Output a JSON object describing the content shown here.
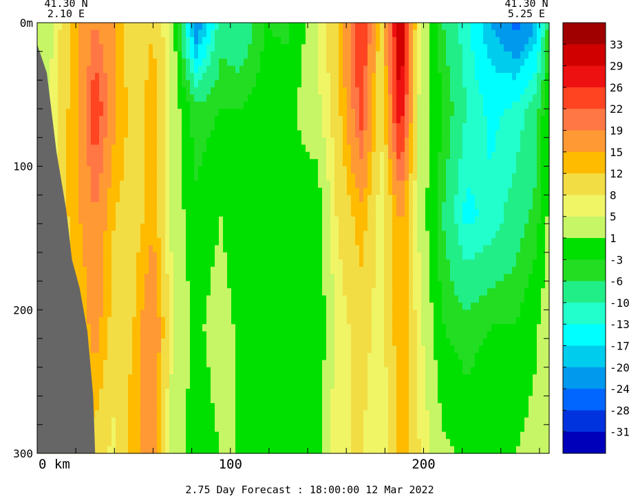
{
  "chart_data": {
    "type": "heatmap",
    "title": "",
    "footer": "2.75 Day Forecast : 18:00:00  12 Mar 2022",
    "left_coord": {
      "lat": "41.30 N",
      "lon": "2.10 E"
    },
    "right_coord": {
      "lat": "41.30 N",
      "lon": "5.25 E"
    },
    "xlabel": "",
    "ylabel": "",
    "x_unit": "km",
    "xlim": [
      0,
      265
    ],
    "ylim": [
      0,
      300
    ],
    "x_ticks": [
      {
        "value": 0,
        "label": "0 km"
      },
      {
        "value": 100,
        "label": "100"
      },
      {
        "value": 200,
        "label": "200"
      }
    ],
    "y_ticks": [
      {
        "value": 0,
        "label": "0m"
      },
      {
        "value": 100,
        "label": "100"
      },
      {
        "value": 200,
        "label": "200"
      },
      {
        "value": 300,
        "label": "300"
      }
    ],
    "colorbar": {
      "labels": [
        "33",
        "29",
        "26",
        "22",
        "19",
        "15",
        "12",
        "8",
        "5",
        "1",
        "-3",
        "-6",
        "-10",
        "-13",
        "-17",
        "-20",
        "-24",
        "-28",
        "-31"
      ],
      "colors": [
        "#a00000",
        "#d00000",
        "#ee1111",
        "#ff4422",
        "#ff7744",
        "#ff9933",
        "#ffbb00",
        "#f2dd44",
        "#f0f566",
        "#c6f566",
        "#00e000",
        "#22dd22",
        "#22ee88",
        "#22ffcc",
        "#00ffff",
        "#00ccee",
        "#0099ee",
        "#0066ff",
        "#0033dd",
        "#0000bb"
      ]
    },
    "vertical_profile": [
      0,
      0.2,
      0.45,
      0.7,
      1.0
    ],
    "columns": [
      {
        "x": 4,
        "v": [
          2,
          2,
          2,
          2,
          2
        ]
      },
      {
        "x": 12,
        "v": [
          8,
          10,
          10,
          10,
          10
        ]
      },
      {
        "x": 22,
        "v": [
          15,
          15,
          15,
          12,
          12
        ]
      },
      {
        "x": 30,
        "v": [
          19,
          25,
          19,
          17,
          10
        ]
      },
      {
        "x": 40,
        "v": [
          15,
          16,
          12,
          10,
          7
        ]
      },
      {
        "x": 50,
        "v": [
          8,
          10,
          10,
          12,
          14
        ]
      },
      {
        "x": 60,
        "v": [
          12,
          14,
          14,
          20,
          18
        ]
      },
      {
        "x": 70,
        "v": [
          4,
          4,
          4,
          5,
          3
        ]
      },
      {
        "x": 82,
        "v": [
          -25,
          -5,
          -2,
          0,
          -1
        ]
      },
      {
        "x": 95,
        "v": [
          -8,
          -3,
          1,
          3,
          1
        ]
      },
      {
        "x": 105,
        "v": [
          -10,
          -3,
          -2,
          0,
          1
        ]
      },
      {
        "x": 118,
        "v": [
          -3,
          -1,
          -2,
          -2,
          -2
        ]
      },
      {
        "x": 130,
        "v": [
          -4,
          0,
          0,
          -3,
          -3
        ]
      },
      {
        "x": 145,
        "v": [
          5,
          4,
          -2,
          -2,
          -2
        ]
      },
      {
        "x": 155,
        "v": [
          12,
          10,
          8,
          6,
          8
        ]
      },
      {
        "x": 168,
        "v": [
          26,
          24,
          14,
          10,
          8
        ]
      },
      {
        "x": 178,
        "v": [
          10,
          8,
          6,
          6,
          5
        ]
      },
      {
        "x": 188,
        "v": [
          34,
          30,
          16,
          15,
          14
        ]
      },
      {
        "x": 198,
        "v": [
          5,
          4,
          4,
          6,
          8
        ]
      },
      {
        "x": 210,
        "v": [
          -6,
          -3,
          -6,
          -3,
          2
        ]
      },
      {
        "x": 222,
        "v": [
          -12,
          -10,
          -14,
          -5,
          0
        ]
      },
      {
        "x": 235,
        "v": [
          -20,
          -14,
          -12,
          -3,
          1
        ]
      },
      {
        "x": 248,
        "v": [
          -26,
          -12,
          -8,
          -3,
          1
        ]
      },
      {
        "x": 258,
        "v": [
          -20,
          -8,
          -5,
          0,
          3
        ]
      },
      {
        "x": 265,
        "v": [
          -4,
          1,
          2,
          4,
          5
        ]
      }
    ],
    "bathymetry": [
      {
        "x": 0,
        "depth": 15
      },
      {
        "x": 5,
        "depth": 35
      },
      {
        "x": 10,
        "depth": 90
      },
      {
        "x": 15,
        "depth": 130
      },
      {
        "x": 18,
        "depth": 165
      },
      {
        "x": 22,
        "depth": 185
      },
      {
        "x": 26,
        "depth": 215
      },
      {
        "x": 29,
        "depth": 260
      },
      {
        "x": 30,
        "depth": 300
      }
    ],
    "land_color": "#666666"
  }
}
